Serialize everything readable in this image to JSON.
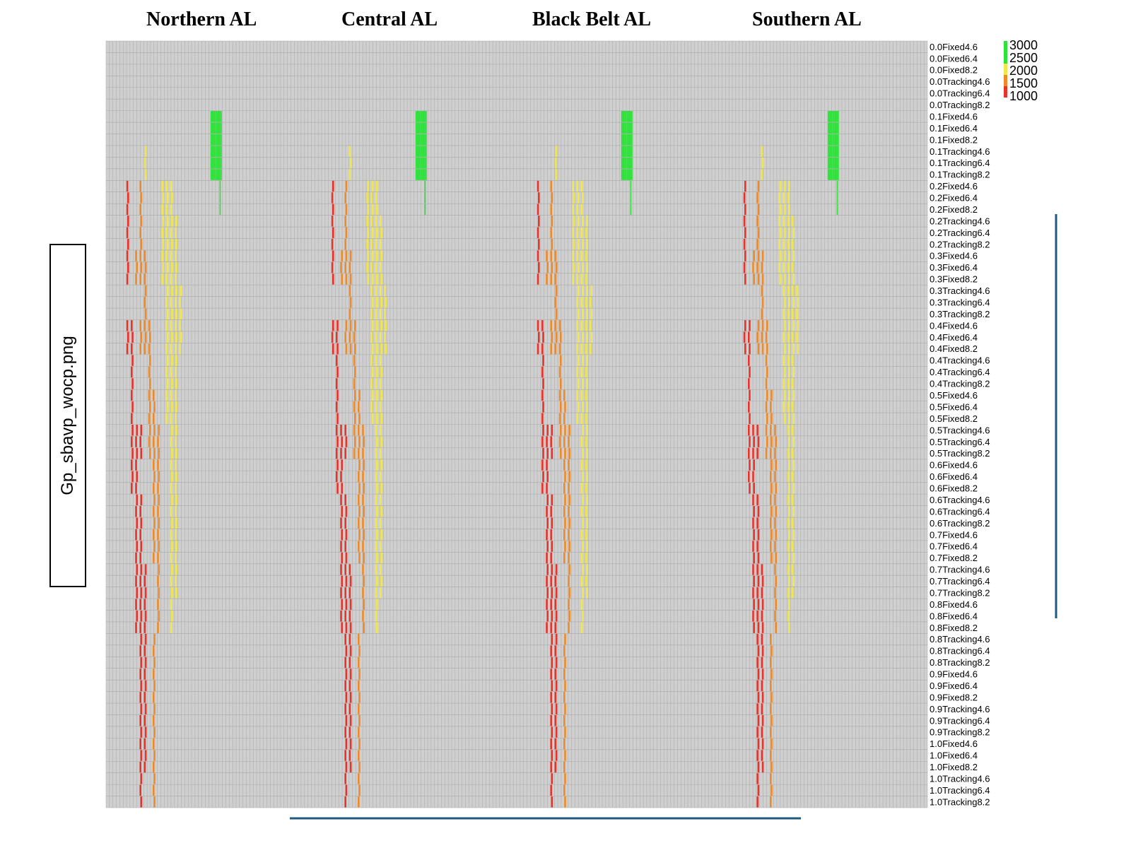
{
  "regions": [
    "Northern AL",
    "Central AL",
    "Black Belt AL",
    "Southern AL"
  ],
  "file_label": "Gp_sbavp_wocp.png",
  "colors": {
    "background": "#cfcfcf",
    "grid": "#a9a9a9",
    "red": "#e8332b",
    "orange": "#ee8a2a",
    "yellow": "#f0e84a",
    "green": "#2ee23a",
    "bracket": "#1c5a7e"
  },
  "chart_data": {
    "type": "heatmap",
    "colorbar": {
      "ticks": [
        "3000",
        "2500",
        "2000",
        "1500",
        "1000"
      ],
      "bands": [
        "green",
        "green",
        "yellow",
        "orange",
        "red"
      ]
    },
    "row_labels": [
      "0.0Fixed4.6",
      "0.0Fixed6.4",
      "0.0Fixed8.2",
      "0.0Tracking4.6",
      "0.0Tracking6.4",
      "0.0Tracking8.2",
      "0.1Fixed4.6",
      "0.1Fixed6.4",
      "0.1Fixed8.2",
      "0.1Tracking4.6",
      "0.1Tracking6.4",
      "0.1Tracking8.2",
      "0.2Fixed4.6",
      "0.2Fixed6.4",
      "0.2Fixed8.2",
      "0.2Tracking4.6",
      "0.2Tracking6.4",
      "0.2Tracking8.2",
      "0.3Fixed4.6",
      "0.3Fixed6.4",
      "0.3Fixed8.2",
      "0.3Tracking4.6",
      "0.3Tracking6.4",
      "0.3Tracking8.2",
      "0.4Fixed4.6",
      "0.4Fixed6.4",
      "0.4Fixed8.2",
      "0.4Tracking4.6",
      "0.4Tracking6.4",
      "0.4Tracking8.2",
      "0.5Fixed4.6",
      "0.5Fixed6.4",
      "0.5Fixed8.2",
      "0.5Tracking4.6",
      "0.5Tracking6.4",
      "0.5Tracking8.2",
      "0.6Fixed4.6",
      "0.6Fixed6.4",
      "0.6Fixed8.2",
      "0.6Tracking4.6",
      "0.6Tracking6.4",
      "0.6Tracking8.2",
      "0.7Fixed4.6",
      "0.7Fixed6.4",
      "0.7Fixed8.2",
      "0.7Tracking4.6",
      "0.7Tracking6.4",
      "0.7Tracking8.2",
      "0.8Fixed4.6",
      "0.8Fixed6.4",
      "0.8Fixed8.2",
      "0.8Tracking4.6",
      "0.8Tracking6.4",
      "0.8Tracking8.2",
      "0.9Fixed4.6",
      "0.9Fixed6.4",
      "0.9Fixed8.2",
      "0.9Tracking4.6",
      "0.9Tracking6.4",
      "0.9Tracking8.2",
      "1.0Fixed4.6",
      "1.0Fixed6.4",
      "1.0Fixed8.2",
      "1.0Tracking4.6",
      "1.0Tracking6.4",
      "1.0Tracking8.2"
    ],
    "n_columns_per_region": 60,
    "cells": [
      {
        "band": "green",
        "rows": [
          6,
          11
        ],
        "cols": [
          8,
          17
        ]
      },
      {
        "band": "green",
        "rows": [
          12,
          14
        ],
        "cols": [
          16,
          16
        ]
      },
      {
        "band": "yellow",
        "rows": [
          9,
          11
        ],
        "cols": [
          3,
          3
        ]
      },
      {
        "band": "yellow",
        "rows": [
          12,
          14
        ],
        "cols": [
          7,
          9
        ]
      },
      {
        "band": "yellow",
        "rows": [
          15,
          20
        ],
        "cols": [
          7,
          10
        ]
      },
      {
        "band": "yellow",
        "rows": [
          21,
          26
        ],
        "cols": [
          8,
          11
        ]
      },
      {
        "band": "yellow",
        "rows": [
          27,
          32
        ],
        "cols": [
          8,
          10
        ]
      },
      {
        "band": "yellow",
        "rows": [
          33,
          41
        ],
        "cols": [
          9,
          10
        ]
      },
      {
        "band": "yellow",
        "rows": [
          42,
          47
        ],
        "cols": [
          9,
          10
        ]
      },
      {
        "band": "yellow",
        "rows": [
          48,
          50
        ],
        "cols": [
          9,
          9
        ]
      },
      {
        "band": "orange",
        "rows": [
          12,
          14
        ],
        "cols": [
          2,
          2
        ]
      },
      {
        "band": "orange",
        "rows": [
          15,
          17
        ],
        "cols": [
          2,
          2
        ]
      },
      {
        "band": "orange",
        "rows": [
          18,
          20
        ],
        "cols": [
          1,
          3
        ]
      },
      {
        "band": "orange",
        "rows": [
          21,
          23
        ],
        "cols": [
          3,
          3
        ]
      },
      {
        "band": "orange",
        "rows": [
          24,
          26
        ],
        "cols": [
          2,
          4
        ]
      },
      {
        "band": "orange",
        "rows": [
          27,
          29
        ],
        "cols": [
          4,
          4
        ]
      },
      {
        "band": "orange",
        "rows": [
          30,
          32
        ],
        "cols": [
          4,
          5
        ]
      },
      {
        "band": "orange",
        "rows": [
          33,
          35
        ],
        "cols": [
          4,
          6
        ]
      },
      {
        "band": "orange",
        "rows": [
          36,
          38
        ],
        "cols": [
          5,
          6
        ]
      },
      {
        "band": "orange",
        "rows": [
          39,
          41
        ],
        "cols": [
          5,
          6
        ]
      },
      {
        "band": "orange",
        "rows": [
          42,
          44
        ],
        "cols": [
          5,
          6
        ]
      },
      {
        "band": "orange",
        "rows": [
          45,
          50
        ],
        "cols": [
          6,
          6
        ]
      },
      {
        "band": "orange",
        "rows": [
          51,
          56
        ],
        "cols": [
          5,
          5
        ]
      },
      {
        "band": "orange",
        "rows": [
          57,
          65
        ],
        "cols": [
          5,
          5
        ]
      },
      {
        "band": "red",
        "rows": [
          12,
          14
        ],
        "cols": [
          -1,
          -1
        ]
      },
      {
        "band": "red",
        "rows": [
          15,
          17
        ],
        "cols": [
          -1,
          -1
        ]
      },
      {
        "band": "red",
        "rows": [
          18,
          20
        ],
        "cols": [
          -1,
          -1
        ]
      },
      {
        "band": "red",
        "rows": [
          24,
          26
        ],
        "cols": [
          -1,
          0
        ]
      },
      {
        "band": "red",
        "rows": [
          27,
          29
        ],
        "cols": [
          0,
          0
        ]
      },
      {
        "band": "red",
        "rows": [
          30,
          32
        ],
        "cols": [
          0,
          0
        ]
      },
      {
        "band": "red",
        "rows": [
          33,
          35
        ],
        "cols": [
          0,
          2
        ]
      },
      {
        "band": "red",
        "rows": [
          36,
          38
        ],
        "cols": [
          0,
          1
        ]
      },
      {
        "band": "red",
        "rows": [
          39,
          41
        ],
        "cols": [
          1,
          2
        ]
      },
      {
        "band": "red",
        "rows": [
          42,
          44
        ],
        "cols": [
          1,
          2
        ]
      },
      {
        "band": "red",
        "rows": [
          45,
          50
        ],
        "cols": [
          1,
          3
        ]
      },
      {
        "band": "red",
        "rows": [
          51,
          56
        ],
        "cols": [
          2,
          3
        ]
      },
      {
        "band": "red",
        "rows": [
          57,
          62
        ],
        "cols": [
          2,
          3
        ]
      },
      {
        "band": "red",
        "rows": [
          63,
          65
        ],
        "cols": [
          2,
          2
        ]
      }
    ]
  }
}
